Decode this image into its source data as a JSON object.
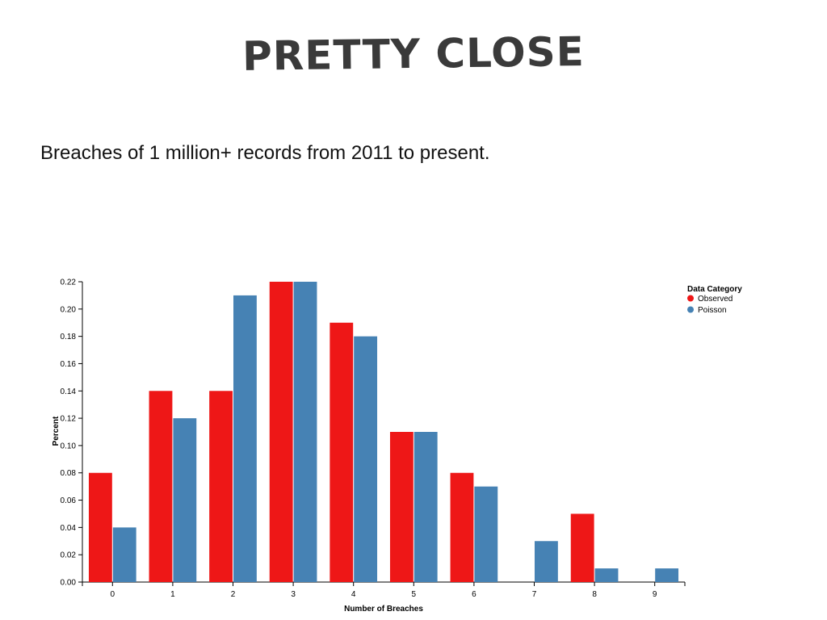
{
  "slide": {
    "title": "PRETTY CLOSE",
    "subtitle": "Breaches of 1 million+ records from 2011 to present."
  },
  "chart_data": {
    "type": "bar",
    "categories": [
      "0",
      "1",
      "2",
      "3",
      "4",
      "5",
      "6",
      "7",
      "8",
      "9"
    ],
    "series": [
      {
        "name": "Observed",
        "color": "#ee1717",
        "values": [
          0.08,
          0.14,
          0.14,
          0.22,
          0.19,
          0.11,
          0.08,
          0.0,
          0.05,
          0.0
        ]
      },
      {
        "name": "Poisson",
        "color": "#4682b4",
        "values": [
          0.04,
          0.12,
          0.21,
          0.22,
          0.18,
          0.11,
          0.07,
          0.03,
          0.01,
          0.01
        ]
      }
    ],
    "title": "",
    "xlabel": "Number of Breaches",
    "ylabel": "Percent",
    "ylim": [
      0,
      0.22
    ],
    "yticks": [
      "0.00",
      "0.02",
      "0.04",
      "0.06",
      "0.08",
      "0.10",
      "0.12",
      "0.14",
      "0.16",
      "0.18",
      "0.20",
      "0.22"
    ],
    "legend": {
      "title": "Data Category",
      "placement": "top-right"
    },
    "grid": false
  }
}
